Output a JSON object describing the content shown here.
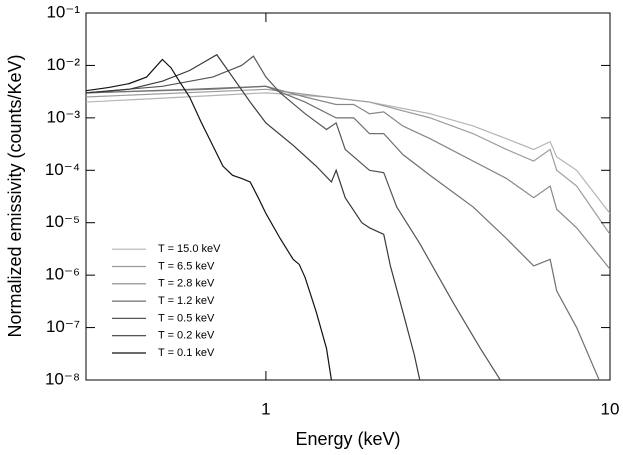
{
  "chart_data": {
    "type": "line",
    "xlabel": "Energy (keV)",
    "ylabel": "Normalized emissivity (counts/KeV)",
    "xscale": "log",
    "yscale": "log",
    "xlim": [
      0.3,
      10
    ],
    "ylim": [
      1e-08,
      0.1
    ],
    "xticks": [
      1,
      10
    ],
    "yticks": [
      {
        "value": 1e-08,
        "label": "10⁻⁸"
      },
      {
        "value": 1e-07,
        "label": "10⁻⁷"
      },
      {
        "value": 1e-06,
        "label": "10⁻⁶"
      },
      {
        "value": 1e-05,
        "label": "10⁻⁵"
      },
      {
        "value": 0.0001,
        "label": "10⁻⁴"
      },
      {
        "value": 0.001,
        "label": "10⁻³"
      },
      {
        "value": 0.01,
        "label": "10⁻²"
      },
      {
        "value": 0.1,
        "label": "10⁻¹"
      }
    ],
    "legend": "lower left",
    "series": [
      {
        "name": "T = 15.0 keV",
        "color": "#b4b4b4",
        "x": [
          0.3,
          1.0,
          1.5,
          2.0,
          3.0,
          4.0,
          5.0,
          6.0,
          6.7,
          7.0,
          8.0,
          10
        ],
        "values": [
          0.002,
          0.003,
          0.0025,
          0.002,
          0.0012,
          0.0007,
          0.0004,
          0.00025,
          0.00035,
          0.00018,
          0.0001,
          1.5e-05
        ]
      },
      {
        "name": "T = 6.5 keV",
        "color": "#9c9c9c",
        "x": [
          0.3,
          1.0,
          1.5,
          2.0,
          3.0,
          4.0,
          5.0,
          6.0,
          6.7,
          7.0,
          8.0,
          10
        ],
        "values": [
          0.0025,
          0.0035,
          0.0025,
          0.002,
          0.001,
          0.0005,
          0.00025,
          0.00015,
          0.00025,
          0.0001,
          5e-05,
          6e-06
        ]
      },
      {
        "name": "T = 2.8 keV",
        "color": "#878787",
        "x": [
          0.3,
          0.7,
          1.0,
          1.3,
          1.6,
          1.8,
          2.0,
          2.2,
          2.5,
          3.0,
          4.0,
          5.0,
          6.0,
          6.7,
          7.0,
          8.0,
          10
        ],
        "values": [
          0.003,
          0.0035,
          0.004,
          0.0025,
          0.0018,
          0.0018,
          0.0012,
          0.0013,
          0.0007,
          0.0004,
          0.00015,
          7e-05,
          3e-05,
          5e-05,
          1.8e-05,
          8e-06,
          1.3e-06
        ]
      },
      {
        "name": "T = 1.2 keV",
        "color": "#707070",
        "x": [
          0.3,
          0.6,
          1.0,
          1.3,
          1.6,
          1.8,
          2.0,
          2.2,
          2.5,
          3.0,
          4.0,
          5.0,
          6.0,
          6.7,
          7.0,
          8.0,
          9.3
        ],
        "values": [
          0.003,
          0.0035,
          0.004,
          0.002,
          0.001,
          0.001,
          0.0005,
          0.0005,
          0.0002,
          8e-05,
          2e-05,
          5e-06,
          1.5e-06,
          2e-06,
          5e-07,
          1e-07,
          1e-08
        ]
      },
      {
        "name": "T = 0.5 keV",
        "color": "#555555",
        "x": [
          0.3,
          0.5,
          0.7,
          0.85,
          0.92,
          1.0,
          1.1,
          1.3,
          1.5,
          1.6,
          1.7,
          2.0,
          2.2,
          2.4,
          2.8,
          3.5,
          4.2,
          4.8
        ],
        "values": [
          0.003,
          0.004,
          0.006,
          0.01,
          0.015,
          0.006,
          0.003,
          0.0012,
          0.0006,
          0.0008,
          0.00025,
          0.0001,
          9e-05,
          2e-05,
          4e-06,
          3e-07,
          4e-08,
          1e-08
        ]
      },
      {
        "name": "T = 0.2 keV",
        "color": "#3a3a3a",
        "x": [
          0.3,
          0.4,
          0.5,
          0.6,
          0.72,
          0.8,
          0.9,
          1.0,
          1.2,
          1.4,
          1.55,
          1.6,
          1.7,
          1.9,
          2.0,
          2.2,
          2.3,
          2.5,
          2.7,
          2.8
        ],
        "values": [
          0.003,
          0.0035,
          0.005,
          0.008,
          0.016,
          0.006,
          0.002,
          0.0008,
          0.0003,
          0.00012,
          6e-05,
          0.0001,
          3e-05,
          1e-05,
          8e-06,
          6e-06,
          1.5e-06,
          2e-07,
          3e-08,
          1e-08
        ]
      },
      {
        "name": "T = 0.1 keV",
        "color": "#111111",
        "x": [
          0.3,
          0.35,
          0.4,
          0.45,
          0.5,
          0.53,
          0.56,
          0.6,
          0.65,
          0.7,
          0.75,
          0.8,
          0.85,
          0.9,
          0.95,
          1.0,
          1.1,
          1.2,
          1.25,
          1.3,
          1.4,
          1.5,
          1.55
        ],
        "values": [
          0.0033,
          0.0038,
          0.0045,
          0.006,
          0.013,
          0.009,
          0.005,
          0.0025,
          0.0008,
          0.0003,
          0.00012,
          8e-05,
          7e-05,
          6e-05,
          3e-05,
          1.5e-05,
          5e-06,
          2e-06,
          1.6e-06,
          9e-07,
          2e-07,
          4e-08,
          1e-08
        ]
      }
    ]
  }
}
